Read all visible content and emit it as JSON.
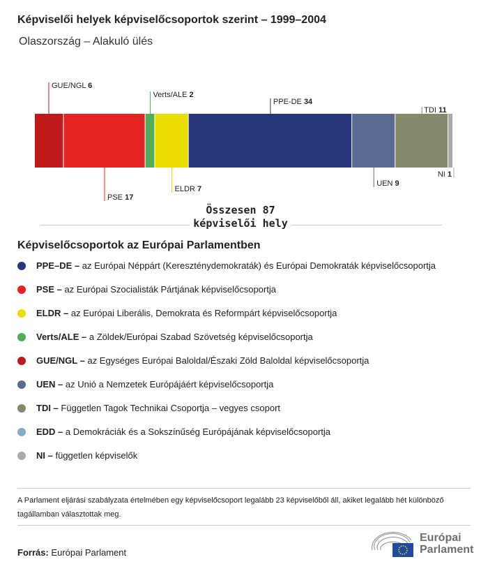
{
  "title": "Képviselői helyek képviselőcsoportok szerint – 1999–2004",
  "subtitle": "Olaszország – Alakuló ülés",
  "chart_data": {
    "type": "stacked-bar",
    "categories": [
      "GUE/NGL",
      "PSE",
      "Verts/ALE",
      "ELDR",
      "PPE-DE",
      "UEN",
      "TDI",
      "NI"
    ],
    "values": [
      6,
      17,
      2,
      7,
      34,
      9,
      11,
      1
    ],
    "colors": [
      "#c0191c",
      "#e42322",
      "#4fae57",
      "#ebdd00",
      "#28377c",
      "#5a6b92",
      "#838b6c",
      "#aaaaaa"
    ],
    "label_side": [
      "top",
      "bottom",
      "top",
      "bottom",
      "top",
      "bottom",
      "top",
      "bottom"
    ],
    "total_label": "Összesen 87 képviselői hely"
  },
  "legend": {
    "title": "Képviselőcsoportok az Európai Parlamentben",
    "items": [
      {
        "abbr": "PPE–DE –",
        "text": "az Európai Néppárt (Kereszténydemokraták) és Európai Demokraták képviselőcsoportja",
        "color": "#28377c"
      },
      {
        "abbr": "PSE –",
        "text": "az Európai Szocialisták Pártjának képviselőcsoportja",
        "color": "#e42322"
      },
      {
        "abbr": "ELDR –",
        "text": "az Európai Liberális, Demokrata és Reformpárt képviselőcsoportja",
        "color": "#ebdd00"
      },
      {
        "abbr": "Verts/ALE –",
        "text": "a Zöldek/Európai Szabad Szövetség képviselőcsoportja",
        "color": "#4fae57"
      },
      {
        "abbr": "GUE/NGL –",
        "text": "az Egységes Európai Baloldal/Északi Zöld Baloldal képviselőcsoportja",
        "color": "#c0191c"
      },
      {
        "abbr": "UEN –",
        "text": "az Unió a Nemzetek Európájáért képviselőcsoportja",
        "color": "#5a6b92"
      },
      {
        "abbr": "TDI –",
        "text": "Független Tagok Technikai Csoportja – vegyes csoport",
        "color": "#838b6c"
      },
      {
        "abbr": "EDD –",
        "text": "a Demokráciák és a Sokszínűség Európájának képviselőcsoportja",
        "color": "#7fadc6"
      },
      {
        "abbr": "NI –",
        "text": "független képviselők",
        "color": "#aaaaaa"
      }
    ]
  },
  "note": "A Parlament eljárási szabályzata értelmében egy képviselőcsoport legalább 23 képviselőből áll, akiket legalább hét különböző tagállamban választottak meg.",
  "source": {
    "label": "Forrás:",
    "text": "Európai Parlament"
  },
  "logo": {
    "line1": "Európai",
    "line2": "Parlament"
  }
}
